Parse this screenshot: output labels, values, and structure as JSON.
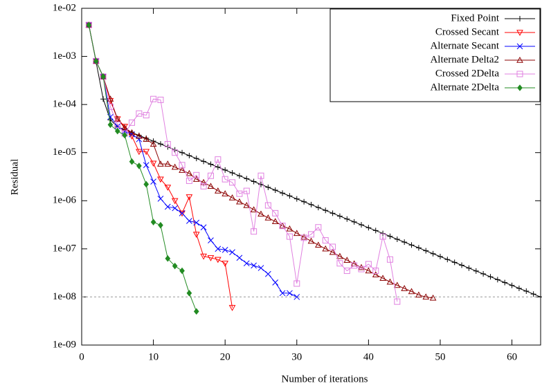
{
  "chart_data": {
    "type": "line",
    "log_y": true,
    "legend": "top-right",
    "xlabel": "Number of iterations",
    "ylabel": "Residual",
    "xlim": [
      0,
      64
    ],
    "xticks": [
      0,
      10,
      20,
      30,
      40,
      50,
      60
    ],
    "ylim": [
      1e-09,
      0.01
    ],
    "yticks": [
      {
        "value": 1e-09,
        "label": "1e-09"
      },
      {
        "value": 1e-08,
        "label": "1e-08"
      },
      {
        "value": 1e-07,
        "label": "1e-07"
      },
      {
        "value": 1e-06,
        "label": "1e-06"
      },
      {
        "value": 1e-05,
        "label": "1e-05"
      },
      {
        "value": 0.0001,
        "label": "1e-04"
      },
      {
        "value": 0.001,
        "label": "1e-03"
      },
      {
        "value": 0.01,
        "label": "1e-02"
      }
    ],
    "reference_line": 1e-08,
    "series": [
      {
        "name": "Fixed Point",
        "color": "#000000",
        "marker": "plus",
        "x": [
          1,
          2,
          3,
          4,
          5,
          6,
          7,
          8,
          9,
          10,
          11,
          12,
          13,
          14,
          15,
          16,
          17,
          18,
          19,
          20,
          21,
          22,
          23,
          24,
          25,
          26,
          27,
          28,
          29,
          30,
          31,
          32,
          33,
          34,
          35,
          36,
          37,
          38,
          39,
          40,
          41,
          42,
          43,
          44,
          45,
          46,
          47,
          48,
          49,
          50,
          51,
          52,
          53,
          54,
          55,
          56,
          57,
          58,
          59,
          60,
          61,
          62,
          63,
          64
        ],
        "values": [
          0.0045,
          0.00078,
          0.00013,
          4.8e-05,
          3.45e-05,
          3.01e-05,
          2.62e-05,
          2.28e-05,
          1.99e-05,
          1.73e-05,
          1.51e-05,
          1.31e-05,
          1.14e-05,
          9.97e-06,
          8.68e-06,
          7.56e-06,
          6.59e-06,
          5.74e-06,
          5e-06,
          4.35e-06,
          3.79e-06,
          3.3e-06,
          2.88e-06,
          2.51e-06,
          2.18e-06,
          1.9e-06,
          1.66e-06,
          1.44e-06,
          1.26e-06,
          1.09e-06,
          9.53e-07,
          8.3e-07,
          7.23e-07,
          6.3e-07,
          5.49e-07,
          4.78e-07,
          4.16e-07,
          3.63e-07,
          3.16e-07,
          2.75e-07,
          2.4e-07,
          2.09e-07,
          1.82e-07,
          1.58e-07,
          1.38e-07,
          1.2e-07,
          1.05e-07,
          9.11e-08,
          7.93e-08,
          6.91e-08,
          6.02e-08,
          5.24e-08,
          4.57e-08,
          3.98e-08,
          3.46e-08,
          3.02e-08,
          2.63e-08,
          2.29e-08,
          1.99e-08,
          1.74e-08,
          1.51e-08,
          1.32e-08,
          1.15e-08,
          1e-08
        ]
      },
      {
        "name": "Crossed Secant",
        "color": "#ff0000",
        "marker": "triangle-down",
        "x": [
          1,
          2,
          3,
          4,
          5,
          6,
          7,
          8,
          9,
          10,
          11,
          12,
          13,
          14,
          15,
          16,
          17,
          18,
          19,
          20,
          21
        ],
        "values": [
          0.0045,
          0.0008,
          0.00038,
          0.00012,
          5e-05,
          3.5e-05,
          2.2e-05,
          1.05e-05,
          1.05e-05,
          6e-06,
          2.8e-06,
          1.9e-06,
          1e-06,
          5.5e-07,
          1.2e-06,
          2e-07,
          7e-08,
          6.5e-08,
          6e-08,
          5e-08,
          6e-09
        ]
      },
      {
        "name": "Alternate Secant",
        "color": "#0000ff",
        "marker": "cross",
        "x": [
          1,
          2,
          3,
          4,
          5,
          6,
          7,
          8,
          9,
          10,
          11,
          12,
          13,
          14,
          15,
          16,
          17,
          18,
          19,
          20,
          21,
          22,
          23,
          24,
          25,
          26,
          27,
          28,
          29,
          30
        ],
        "values": [
          0.0045,
          0.0008,
          0.00038,
          5.5e-05,
          3.5e-05,
          2.8e-05,
          2.4e-05,
          1.9e-05,
          5.5e-06,
          2.5e-06,
          1.1e-06,
          7.5e-07,
          7e-07,
          5.5e-07,
          3.8e-07,
          3.5e-07,
          2.8e-07,
          1.5e-07,
          1e-07,
          9.5e-08,
          8.5e-08,
          6.5e-08,
          5e-08,
          4.5e-08,
          4e-08,
          3e-08,
          2e-08,
          1.2e-08,
          1.2e-08,
          1e-08
        ]
      },
      {
        "name": "Alternate Delta2",
        "color": "#8b0000",
        "marker": "triangle-up",
        "x": [
          1,
          2,
          3,
          4,
          5,
          6,
          7,
          8,
          9,
          10,
          11,
          12,
          13,
          14,
          15,
          16,
          17,
          18,
          19,
          20,
          21,
          22,
          23,
          24,
          25,
          26,
          27,
          28,
          29,
          30,
          31,
          32,
          33,
          34,
          35,
          36,
          37,
          38,
          39,
          40,
          41,
          42,
          43,
          44,
          45,
          46,
          47,
          48,
          49
        ],
        "values": [
          0.0045,
          0.0008,
          0.00038,
          0.00013,
          5e-05,
          3.3e-05,
          2.6e-05,
          2.2e-05,
          1.9e-05,
          1.5e-05,
          5.8e-06,
          5.8e-06,
          5e-06,
          4.3e-06,
          3.7e-06,
          2.8e-06,
          2.4e-06,
          2e-06,
          1.6e-06,
          1.4e-06,
          1.15e-06,
          9.5e-07,
          8e-07,
          6.5e-07,
          5.3e-07,
          4.4e-07,
          3.7e-07,
          3e-07,
          2.6e-07,
          2.1e-07,
          1.75e-07,
          1.45e-07,
          1.2e-07,
          1e-07,
          8.5e-08,
          7e-08,
          5.8e-08,
          4.9e-08,
          4.1e-08,
          3.5e-08,
          2.9e-08,
          2.45e-08,
          2.05e-08,
          1.75e-08,
          1.5e-08,
          1.3e-08,
          1.1e-08,
          1e-08,
          9.5e-09
        ]
      },
      {
        "name": "Crossed 2Delta",
        "color": "#e080e0",
        "marker": "square",
        "x": [
          1,
          2,
          3,
          4,
          5,
          6,
          7,
          8,
          9,
          10,
          11,
          12,
          13,
          14,
          15,
          16,
          17,
          18,
          19,
          20,
          21,
          22,
          23,
          24,
          25,
          26,
          27,
          28,
          29,
          30,
          31,
          32,
          33,
          34,
          35,
          36,
          37,
          38,
          39,
          40,
          41,
          42,
          43,
          44
        ],
        "values": [
          0.0045,
          0.0008,
          0.00038,
          9e-05,
          3.8e-05,
          2.5e-05,
          4.2e-05,
          6.5e-05,
          6e-05,
          0.00013,
          0.000125,
          1.5e-05,
          1e-05,
          5.5e-06,
          2.6e-06,
          3.4e-06,
          2e-06,
          3.3e-06,
          7.2e-06,
          2.8e-06,
          2.4e-06,
          1.4e-06,
          1.6e-06,
          2.3e-07,
          3.3e-06,
          8e-07,
          5.5e-07,
          3e-07,
          1.8e-07,
          1.9e-08,
          1.7e-07,
          2e-07,
          2.8e-07,
          1.5e-07,
          1.1e-07,
          5e-08,
          3.5e-08,
          4.5e-08,
          3.8e-08,
          4.8e-08,
          3.5e-08,
          1.8e-07,
          6e-08,
          8e-09
        ]
      },
      {
        "name": "Alternate 2Delta",
        "color": "#228b22",
        "marker": "diamond",
        "x": [
          1,
          2,
          3,
          4,
          5,
          6,
          7,
          8,
          9,
          10,
          11,
          12,
          13,
          14,
          15,
          16
        ],
        "values": [
          0.0045,
          0.0008,
          0.00038,
          3.8e-05,
          2.8e-05,
          2.3e-05,
          6.5e-06,
          5.3e-06,
          2.2e-06,
          3.6e-07,
          3.1e-07,
          6.3e-08,
          4.4e-08,
          3.5e-08,
          1.2e-08,
          5e-09
        ]
      }
    ]
  }
}
